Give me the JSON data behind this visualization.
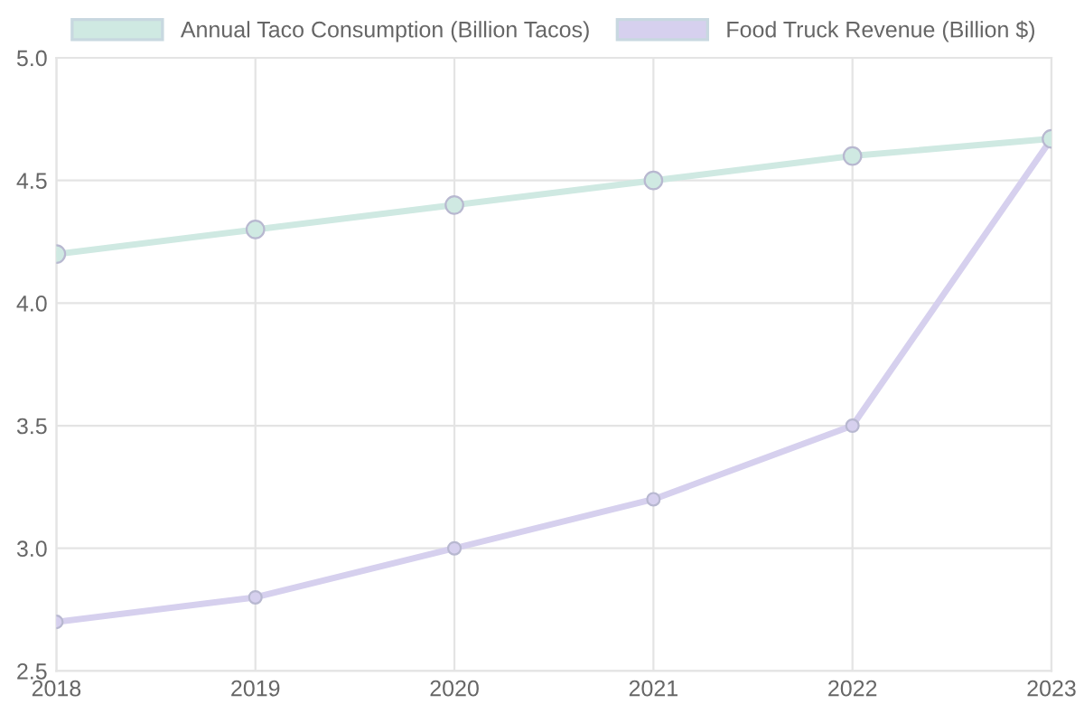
{
  "chart_data": {
    "type": "line",
    "x": [
      2018,
      2019,
      2020,
      2021,
      2022,
      2023
    ],
    "series": [
      {
        "name": "Annual Taco Consumption (Billion Tacos)",
        "color": "#cfe9e2",
        "values": [
          4.2,
          4.3,
          4.4,
          4.5,
          4.6,
          4.67
        ]
      },
      {
        "name": "Food Truck Revenue (Billion $)",
        "color": "#d6d0ee",
        "values": [
          2.7,
          2.8,
          3.0,
          3.2,
          3.5,
          4.67
        ]
      }
    ],
    "xlim": [
      2018,
      2023
    ],
    "xticks": [
      2018,
      2019,
      2020,
      2021,
      2022,
      2023
    ],
    "ylim": [
      2.5,
      5.0
    ],
    "yticks": [
      2.5,
      {
        "value": 3,
        "label": "3.0"
      },
      3.5,
      {
        "value": 4,
        "label": "4.0"
      },
      4.5,
      {
        "value": 5,
        "label": "5.0"
      }
    ],
    "grid": true,
    "legend": "top",
    "marker": "circle",
    "line_style": "solid"
  }
}
